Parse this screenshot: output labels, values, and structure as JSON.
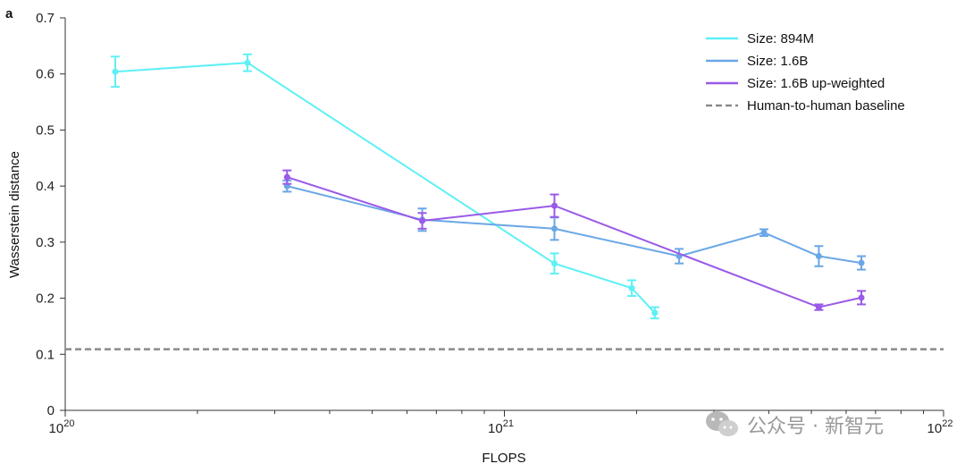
{
  "panel_label": "a",
  "watermark": "公众号 · 新智元",
  "chart_data": {
    "type": "line",
    "xlabel": "FLOPS",
    "ylabel": "Wasserstein distance",
    "xscale": "log",
    "xlim": [
      1e+20,
      1e+22
    ],
    "ylim": [
      0,
      0.7
    ],
    "xticks": [
      {
        "value": 1e+20,
        "base": "10",
        "exp": "20"
      },
      {
        "value": 1e+21,
        "base": "10",
        "exp": "21"
      },
      {
        "value": 1e+22,
        "base": "10",
        "exp": "22"
      }
    ],
    "yticks": [
      0,
      0.1,
      0.2,
      0.3,
      0.4,
      0.5,
      0.6,
      0.7
    ],
    "ytick_labels": [
      "0",
      "0.1",
      "0.2",
      "0.3",
      "0.4",
      "0.5",
      "0.6",
      "0.7"
    ],
    "grid": false,
    "legend_position": "top-right",
    "series": [
      {
        "name": "Size: 894M",
        "color": "#5ef0f5",
        "x": [
          1.3e+20,
          2.6e+20,
          1.3e+21,
          1.95e+21,
          2.2e+21
        ],
        "y": [
          0.604,
          0.62,
          0.262,
          0.218,
          0.174
        ],
        "err": [
          0.027,
          0.015,
          0.018,
          0.014,
          0.01
        ]
      },
      {
        "name": "Size: 1.6B",
        "color": "#6aa7e6",
        "x": [
          3.2e+20,
          6.5e+20,
          1.3e+21,
          2.5e+21,
          3.9e+21,
          5.2e+21,
          6.5e+21
        ],
        "y": [
          0.4,
          0.34,
          0.324,
          0.275,
          0.317,
          0.275,
          0.263
        ],
        "err": [
          0.01,
          0.02,
          0.02,
          0.013,
          0.006,
          0.018,
          0.012
        ]
      },
      {
        "name": "Size: 1.6B up-weighted",
        "color": "#9a5ae8",
        "x": [
          3.2e+20,
          6.5e+20,
          1.3e+21,
          5.2e+21,
          6.5e+21
        ],
        "y": [
          0.416,
          0.338,
          0.365,
          0.184,
          0.201
        ],
        "err": [
          0.012,
          0.014,
          0.02,
          0.005,
          0.012
        ]
      }
    ],
    "baseline": {
      "name": "Human-to-human baseline",
      "y": 0.109,
      "color": "#8a8a8a"
    }
  }
}
